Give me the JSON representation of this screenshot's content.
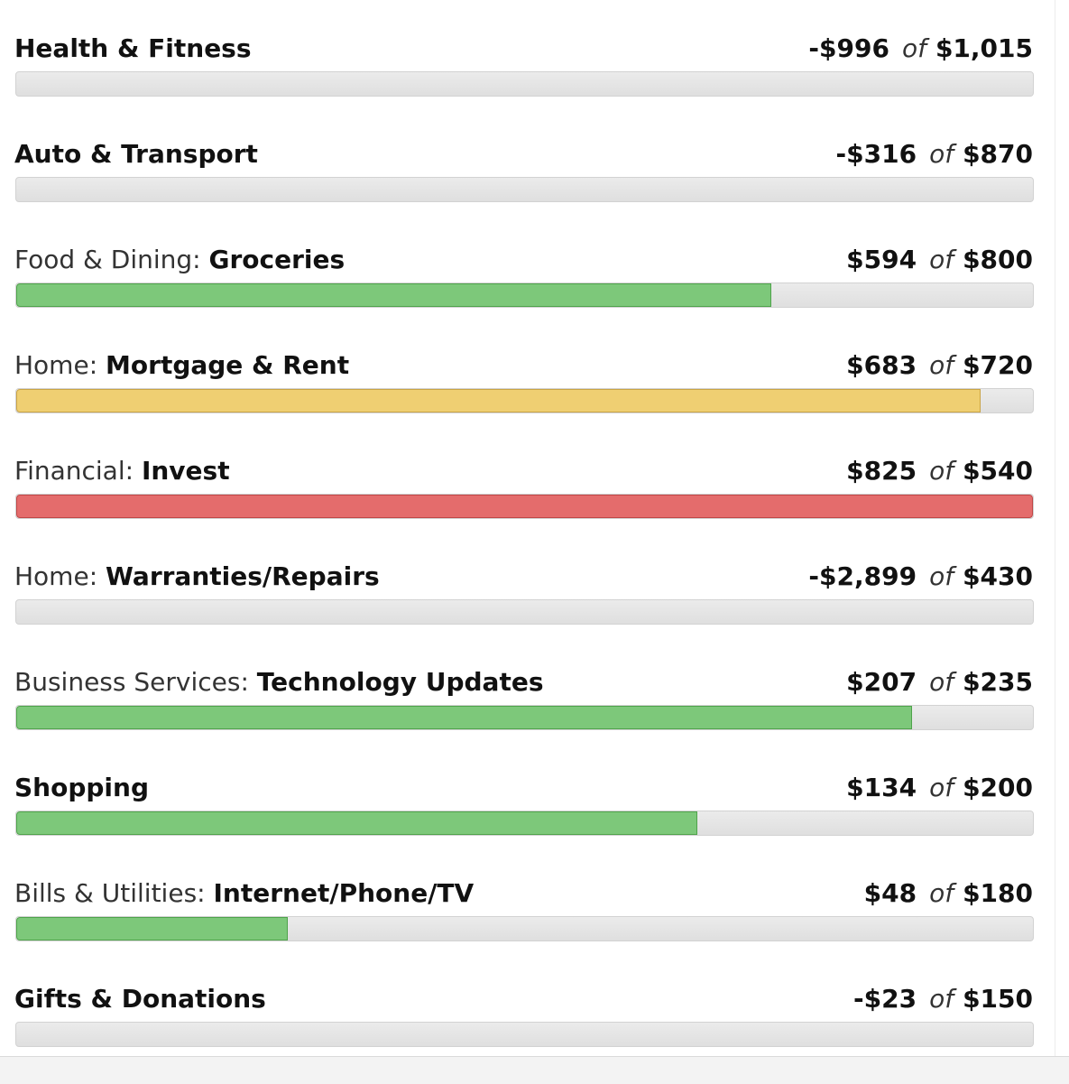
{
  "colors": {
    "on_track": "#7dc87a",
    "on_track_border": "#4fa34b",
    "warning": "#efcf72",
    "warning_border": "#caa445",
    "over": "#e46c6c",
    "over_border": "#c04646",
    "track": "#e2e2e2"
  },
  "budgets": [
    {
      "parent": "",
      "name": "Health & Fitness",
      "spent": "-$996",
      "of": "of",
      "budget": "$1,015",
      "progress": 0,
      "status": "none"
    },
    {
      "parent": "",
      "name": "Auto & Transport",
      "spent": "-$316",
      "of": "of",
      "budget": "$870",
      "progress": 0,
      "status": "none"
    },
    {
      "parent": "Food & Dining: ",
      "name": "Groceries",
      "spent": "$594",
      "of": "of",
      "budget": "$800",
      "progress": 0.7425,
      "status": "on_track"
    },
    {
      "parent": "Home: ",
      "name": "Mortgage & Rent",
      "spent": "$683",
      "of": "of",
      "budget": "$720",
      "progress": 0.9486,
      "status": "warning"
    },
    {
      "parent": "Financial: ",
      "name": "Invest",
      "spent": "$825",
      "of": "of",
      "budget": "$540",
      "progress": 1,
      "status": "over"
    },
    {
      "parent": "Home: ",
      "name": "Warranties/Repairs",
      "spent": "-$2,899",
      "of": "of",
      "budget": "$430",
      "progress": 0,
      "status": "none"
    },
    {
      "parent": "Business Services: ",
      "name": "Technology Updates",
      "spent": "$207",
      "of": "of",
      "budget": "$235",
      "progress": 0.8809,
      "status": "on_track"
    },
    {
      "parent": "",
      "name": "Shopping",
      "spent": "$134",
      "of": "of",
      "budget": "$200",
      "progress": 0.67,
      "status": "on_track"
    },
    {
      "parent": "Bills & Utilities: ",
      "name": "Internet/Phone/TV",
      "spent": "$48",
      "of": "of",
      "budget": "$180",
      "progress": 0.2667,
      "status": "on_track"
    },
    {
      "parent": "",
      "name": "Gifts & Donations",
      "spent": "-$23",
      "of": "of",
      "budget": "$150",
      "progress": 0,
      "status": "none"
    }
  ]
}
